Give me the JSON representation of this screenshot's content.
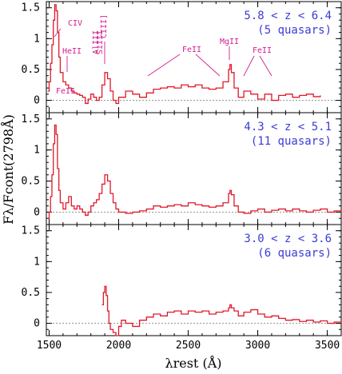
{
  "chart_data": {
    "type": "line",
    "xlabel": "λrest (Å)",
    "ylabel": "Fλ/Fcont(2798Å)",
    "xlim": [
      1480,
      3600
    ],
    "ylim": [
      -0.2,
      1.6
    ],
    "x_ticks": [
      1500,
      2000,
      2500,
      3000,
      3500
    ],
    "y_ticks": [
      0,
      0.5,
      1,
      1.5
    ],
    "x_tick_labels": [
      "1500",
      "2000",
      "2500",
      "3000",
      "3500"
    ],
    "y_tick_labels": [
      "0",
      "0.5",
      "1",
      "1.5"
    ],
    "grid": false,
    "line_labels": [
      "CIV",
      "HeII",
      "AlIII",
      "SiIII",
      "CIII]",
      "FeII",
      "MgII",
      "FeII",
      "FeII"
    ],
    "panels": [
      {
        "annotation": "5.8 < z < 6.4",
        "annotation2": "(5 quasars)",
        "series": [
          {
            "x": [
              1490,
              1500,
              1510,
              1520,
              1530,
              1540,
              1550,
              1560,
              1570,
              1580,
              1600,
              1620,
              1640,
              1660,
              1680,
              1700,
              1720,
              1740,
              1760,
              1780,
              1800,
              1820,
              1840,
              1860,
              1880,
              1900,
              1920,
              1940,
              1960,
              1980,
              2000,
              2050,
              2100,
              2150,
              2200,
              2250,
              2300,
              2350,
              2400,
              2450,
              2500,
              2550,
              2600,
              2650,
              2700,
              2750,
              2790,
              2800,
              2810,
              2830,
              2860,
              2900,
              2950,
              3000,
              3050,
              3100,
              3150,
              3200,
              3250,
              3300,
              3350,
              3400,
              3450
            ],
            "y": [
              0.15,
              0.3,
              0.6,
              0.9,
              1.3,
              1.55,
              1.45,
              1.1,
              0.7,
              0.45,
              0.3,
              0.25,
              0.2,
              0.15,
              0.12,
              0.1,
              0.08,
              0.05,
              -0.05,
              0.02,
              0.1,
              0.05,
              0.0,
              0.05,
              0.25,
              0.45,
              0.35,
              0.15,
              0.0,
              -0.05,
              0.05,
              0.15,
              0.1,
              0.05,
              0.12,
              0.18,
              0.2,
              0.22,
              0.2,
              0.25,
              0.22,
              0.25,
              0.2,
              0.18,
              0.2,
              0.3,
              0.5,
              0.58,
              0.45,
              0.2,
              0.05,
              0.15,
              0.1,
              0.02,
              0.1,
              0.0,
              0.08,
              0.1,
              0.05,
              0.08,
              0.1,
              0.06,
              0.08
            ]
          }
        ]
      },
      {
        "annotation": "4.3 < z < 5.1",
        "annotation2": "(11 quasars)",
        "series": [
          {
            "x": [
              1490,
              1500,
              1510,
              1520,
              1530,
              1540,
              1550,
              1560,
              1570,
              1580,
              1600,
              1620,
              1640,
              1660,
              1680,
              1700,
              1720,
              1740,
              1760,
              1780,
              1800,
              1820,
              1840,
              1860,
              1880,
              1900,
              1920,
              1940,
              1960,
              1980,
              2000,
              2050,
              2100,
              2150,
              2200,
              2250,
              2300,
              2350,
              2400,
              2450,
              2500,
              2550,
              2600,
              2650,
              2700,
              2750,
              2790,
              2800,
              2810,
              2830,
              2860,
              2900,
              2950,
              3000,
              3050,
              3100,
              3150,
              3200,
              3250,
              3300,
              3350,
              3400,
              3450,
              3500,
              3550,
              3600
            ],
            "y": [
              -0.1,
              0.0,
              0.25,
              0.6,
              1.1,
              1.4,
              1.25,
              0.7,
              0.35,
              0.15,
              0.05,
              0.15,
              0.25,
              0.1,
              0.05,
              0.1,
              0.05,
              0.0,
              -0.05,
              0.0,
              0.1,
              0.15,
              0.2,
              0.3,
              0.45,
              0.6,
              0.5,
              0.3,
              0.15,
              0.05,
              0.0,
              -0.02,
              0.0,
              0.02,
              0.05,
              0.1,
              0.08,
              0.1,
              0.12,
              0.1,
              0.15,
              0.12,
              0.1,
              0.08,
              0.1,
              0.15,
              0.3,
              0.35,
              0.28,
              0.1,
              0.0,
              -0.02,
              0.02,
              0.05,
              0.0,
              0.03,
              0.05,
              0.02,
              0.05,
              0.02,
              0.0,
              0.03,
              0.05,
              0.0,
              0.02,
              0.0
            ]
          }
        ]
      },
      {
        "annotation": "3.0 < z < 3.6",
        "annotation2": "(6 quasars)",
        "series": [
          {
            "x": [
              1880,
              1890,
              1900,
              1910,
              1920,
              1930,
              1940,
              1960,
              1980,
              2000,
              2020,
              2050,
              2100,
              2150,
              2200,
              2250,
              2300,
              2350,
              2400,
              2450,
              2500,
              2550,
              2600,
              2650,
              2700,
              2750,
              2790,
              2800,
              2810,
              2830,
              2860,
              2900,
              2950,
              3000,
              3050,
              3100,
              3150,
              3200,
              3250,
              3300,
              3350,
              3400,
              3450,
              3500,
              3550,
              3600
            ],
            "y": [
              0.3,
              0.5,
              0.6,
              0.45,
              0.2,
              0.0,
              -0.1,
              -0.15,
              -0.2,
              -0.05,
              0.05,
              0.0,
              -0.05,
              0.05,
              0.1,
              0.15,
              0.12,
              0.18,
              0.2,
              0.15,
              0.2,
              0.18,
              0.2,
              0.15,
              0.18,
              0.2,
              0.25,
              0.3,
              0.25,
              0.2,
              0.12,
              0.18,
              0.22,
              0.15,
              0.1,
              0.12,
              0.08,
              0.05,
              0.06,
              0.03,
              0.05,
              0.02,
              0.04,
              0.0,
              0.02,
              0.0
            ]
          }
        ]
      }
    ]
  },
  "colors": {
    "spectrum": "#e0192a",
    "annotation": "#3b3bd6",
    "line_markers": "#d3208f"
  }
}
